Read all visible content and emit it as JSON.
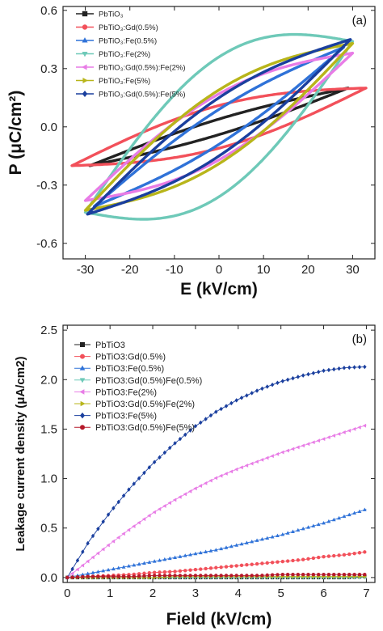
{
  "chart_data": [
    {
      "type": "line",
      "panel_label": "(a)",
      "xlabel": "E (kV/cm)",
      "ylabel": "P (μC/cm²)",
      "xlim": [
        -35,
        35
      ],
      "ylim": [
        -0.68,
        0.62
      ],
      "xticks": [
        -30,
        -20,
        -10,
        0,
        10,
        20,
        30
      ],
      "yticks": [
        -0.6,
        -0.3,
        0.0,
        0.3,
        0.6
      ],
      "xtick_labels": [
        "-30",
        "-20",
        "-10",
        "0",
        "10",
        "20",
        "30"
      ],
      "ytick_labels": [
        "-0.6",
        "-0.3",
        "0.0",
        "0.3",
        "0.6"
      ],
      "legend_position": "top-left",
      "series": [
        {
          "name": "PbTiO₃",
          "color": "#222222",
          "marker": "square",
          "emax": 29,
          "pmax": 0.2,
          "w": 0.04
        },
        {
          "name": "PbTiO₃:Gd(0.5%)",
          "color": "#f2505a",
          "marker": "circle",
          "emax": 33,
          "pmax": 0.2,
          "w": 0.11
        },
        {
          "name": "PbTiO₃:Fe(0.5%)",
          "color": "#2f72d8",
          "marker": "triangle-up",
          "emax": 28,
          "pmax": 0.41,
          "w": 0.09
        },
        {
          "name": "PbTiO₃:Fe(2%)",
          "color": "#6ec9b8",
          "marker": "triangle-down",
          "emax": 30,
          "pmax": 0.44,
          "w": 0.36
        },
        {
          "name": "PbTiO₃:Gd(0.5%):Fe(2%)",
          "color": "#e87ce6",
          "marker": "triangle-left",
          "emax": 30,
          "pmax": 0.38,
          "w": 0.17
        },
        {
          "name": "PbTiO₃:Fe(5%)",
          "color": "#b8b51a",
          "marker": "triangle-right",
          "emax": 30,
          "pmax": 0.43,
          "w": 0.19
        },
        {
          "name": "PbTiO₃:Gd(0.5%):Fe(5%)",
          "color": "#1a3f9e",
          "marker": "diamond",
          "emax": 29.5,
          "pmax": 0.45,
          "w": 0.15
        }
      ]
    },
    {
      "type": "line",
      "panel_label": "(b)",
      "xlabel": "Field (kV/cm)",
      "ylabel": "Leakage current density (μA/cm2)",
      "xlim": [
        -0.1,
        7.2
      ],
      "ylim": [
        -0.05,
        2.55
      ],
      "xticks": [
        0,
        1,
        2,
        3,
        4,
        5,
        6,
        7
      ],
      "yticks": [
        0.0,
        0.5,
        1.0,
        1.5,
        2.0,
        2.5
      ],
      "xtick_labels": [
        "0",
        "1",
        "2",
        "3",
        "4",
        "5",
        "6",
        "7"
      ],
      "ytick_labels": [
        "0.0",
        "0.5",
        "1.0",
        "1.5",
        "2.0",
        "2.5"
      ],
      "legend_position": "top-left",
      "x": [
        0,
        0.5,
        1,
        1.5,
        2,
        2.5,
        3,
        3.5,
        4,
        4.5,
        5,
        5.5,
        6,
        6.5,
        7
      ],
      "series": [
        {
          "name": "PbTiO3",
          "color": "#222222",
          "marker": "square",
          "values": [
            0,
            0,
            0,
            0,
            0,
            0,
            0,
            0,
            0,
            0,
            0,
            0,
            0,
            0,
            0.01
          ]
        },
        {
          "name": "PbTiO3:Gd(0.5%)",
          "color": "#f2505a",
          "marker": "circle",
          "values": [
            0,
            0.01,
            0.02,
            0.03,
            0.05,
            0.06,
            0.08,
            0.1,
            0.12,
            0.14,
            0.16,
            0.18,
            0.21,
            0.23,
            0.26
          ]
        },
        {
          "name": "PbTiO3:Fe(0.5%)",
          "color": "#2f72d8",
          "marker": "triangle-up",
          "values": [
            0,
            0.04,
            0.08,
            0.12,
            0.16,
            0.2,
            0.24,
            0.28,
            0.33,
            0.38,
            0.43,
            0.49,
            0.55,
            0.62,
            0.69
          ]
        },
        {
          "name": "PbTiO3:Gd(0.5%)Fe(0.5%)",
          "color": "#6ec9b8",
          "marker": "triangle-down",
          "values": [
            0,
            0,
            0,
            0,
            0,
            0,
            0,
            0,
            0,
            0,
            0,
            0,
            0,
            0,
            0
          ]
        },
        {
          "name": "PbTiO3:Fe(2%)",
          "color": "#e87ce6",
          "marker": "triangle-left",
          "values": [
            0,
            0.17,
            0.34,
            0.5,
            0.65,
            0.78,
            0.9,
            1.01,
            1.1,
            1.18,
            1.26,
            1.33,
            1.4,
            1.47,
            1.54
          ]
        },
        {
          "name": "PbTiO3:Gd(0.5%)Fe(2%)",
          "color": "#b8b51a",
          "marker": "triangle-right",
          "values": [
            0,
            0,
            0,
            0,
            0,
            0.01,
            0.01,
            0.01,
            0.01,
            0.01,
            0.01,
            0.01,
            0.01,
            0.01,
            0.01
          ]
        },
        {
          "name": "PbTiO3:Fe(5%)",
          "color": "#1a3f9e",
          "marker": "diamond",
          "values": [
            0,
            0.36,
            0.66,
            0.92,
            1.15,
            1.35,
            1.53,
            1.68,
            1.8,
            1.9,
            1.98,
            2.04,
            2.09,
            2.12,
            2.13
          ]
        },
        {
          "name": "PbTiO3:Gd(0.5%)Fe(5%)",
          "color": "#b5192a",
          "marker": "circle",
          "values": [
            0,
            0.01,
            0.01,
            0.01,
            0.02,
            0.02,
            0.02,
            0.02,
            0.02,
            0.02,
            0.03,
            0.03,
            0.03,
            0.03,
            0.03
          ]
        }
      ]
    }
  ]
}
